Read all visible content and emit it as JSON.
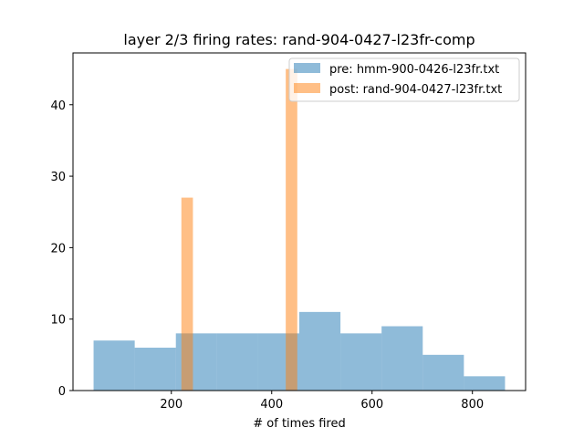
{
  "chart_data": {
    "type": "histogram",
    "title": "layer 2/3 firing rates: rand-904-0427-l23fr-comp",
    "xlabel": "# of times fired",
    "ylabel": "",
    "xlim": [
      4,
      906
    ],
    "ylim": [
      0,
      47.25
    ],
    "xticks": [
      200,
      400,
      600,
      800
    ],
    "yticks": [
      0,
      10,
      20,
      30,
      40
    ],
    "legend_position": "top-right",
    "grid": false,
    "series": [
      {
        "name": "pre: hmm-900-0426-l23fr.txt",
        "color": "#1f77b4",
        "alpha": 0.5,
        "bins": [
          {
            "x0": 45,
            "x1": 127,
            "count": 7
          },
          {
            "x0": 127,
            "x1": 209,
            "count": 6
          },
          {
            "x0": 209,
            "x1": 291,
            "count": 8
          },
          {
            "x0": 291,
            "x1": 373,
            "count": 8
          },
          {
            "x0": 373,
            "x1": 455,
            "count": 8
          },
          {
            "x0": 455,
            "x1": 537,
            "count": 11
          },
          {
            "x0": 537,
            "x1": 619,
            "count": 8
          },
          {
            "x0": 619,
            "x1": 701,
            "count": 9
          },
          {
            "x0": 701,
            "x1": 783,
            "count": 5
          },
          {
            "x0": 783,
            "x1": 865,
            "count": 2
          }
        ]
      },
      {
        "name": "post: rand-904-0427-l23fr.txt",
        "color": "#ff7f0e",
        "alpha": 0.5,
        "bins": [
          {
            "x0": 220,
            "x1": 243,
            "count": 27
          },
          {
            "x0": 428,
            "x1": 451,
            "count": 45
          }
        ]
      }
    ]
  }
}
